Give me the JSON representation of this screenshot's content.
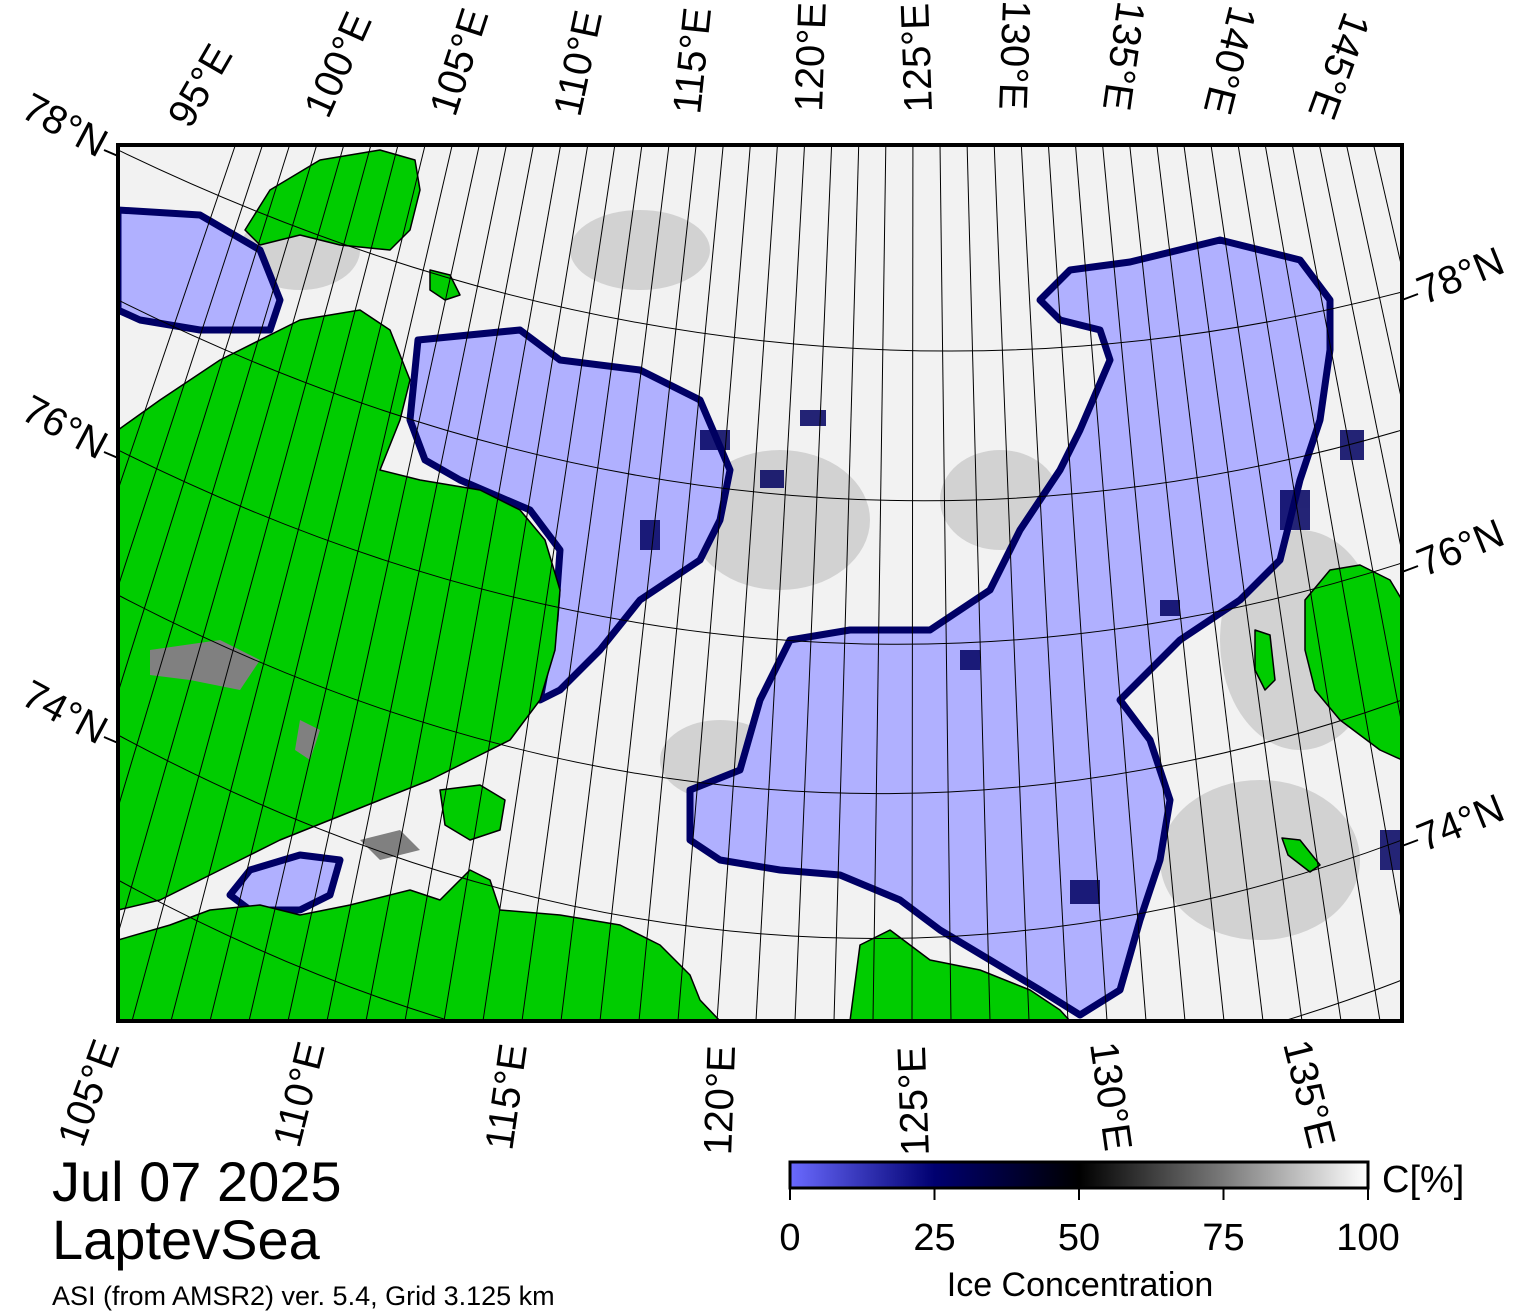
{
  "title": {
    "date": "Jul 07 2025",
    "region": "LaptevSea",
    "source": "ASI (from AMSR2) ver. 5.4,  Grid 3.125 km"
  },
  "map": {
    "top_longitude_labels": [
      "95°E",
      "100°E",
      "105°E",
      "110°E",
      "115°E",
      "120°E",
      "125°E",
      "130°E",
      "135°E",
      "140°E",
      "145°E"
    ],
    "bottom_longitude_labels": [
      "105°E",
      "110°E",
      "115°E",
      "120°E",
      "125°E",
      "130°E",
      "135°E"
    ],
    "left_latitude_labels": [
      "78°N",
      "76°N",
      "74°N"
    ],
    "right_latitude_labels": [
      "78°N",
      "76°N",
      "74°N"
    ],
    "colors": {
      "land": "#00cc00",
      "open_water": "#b0b0ff",
      "ice_edge": "#000066",
      "dense_ice": "#ffffff",
      "coast_gray": "#808080"
    }
  },
  "colorbar": {
    "title": "Ice Concentration",
    "unit": "C[%]",
    "ticks": [
      "0",
      "25",
      "50",
      "75",
      "100"
    ],
    "range": [
      0,
      100
    ],
    "stops": [
      "#6060ff",
      "#000060",
      "#000000",
      "#808080",
      "#ffffff"
    ]
  }
}
